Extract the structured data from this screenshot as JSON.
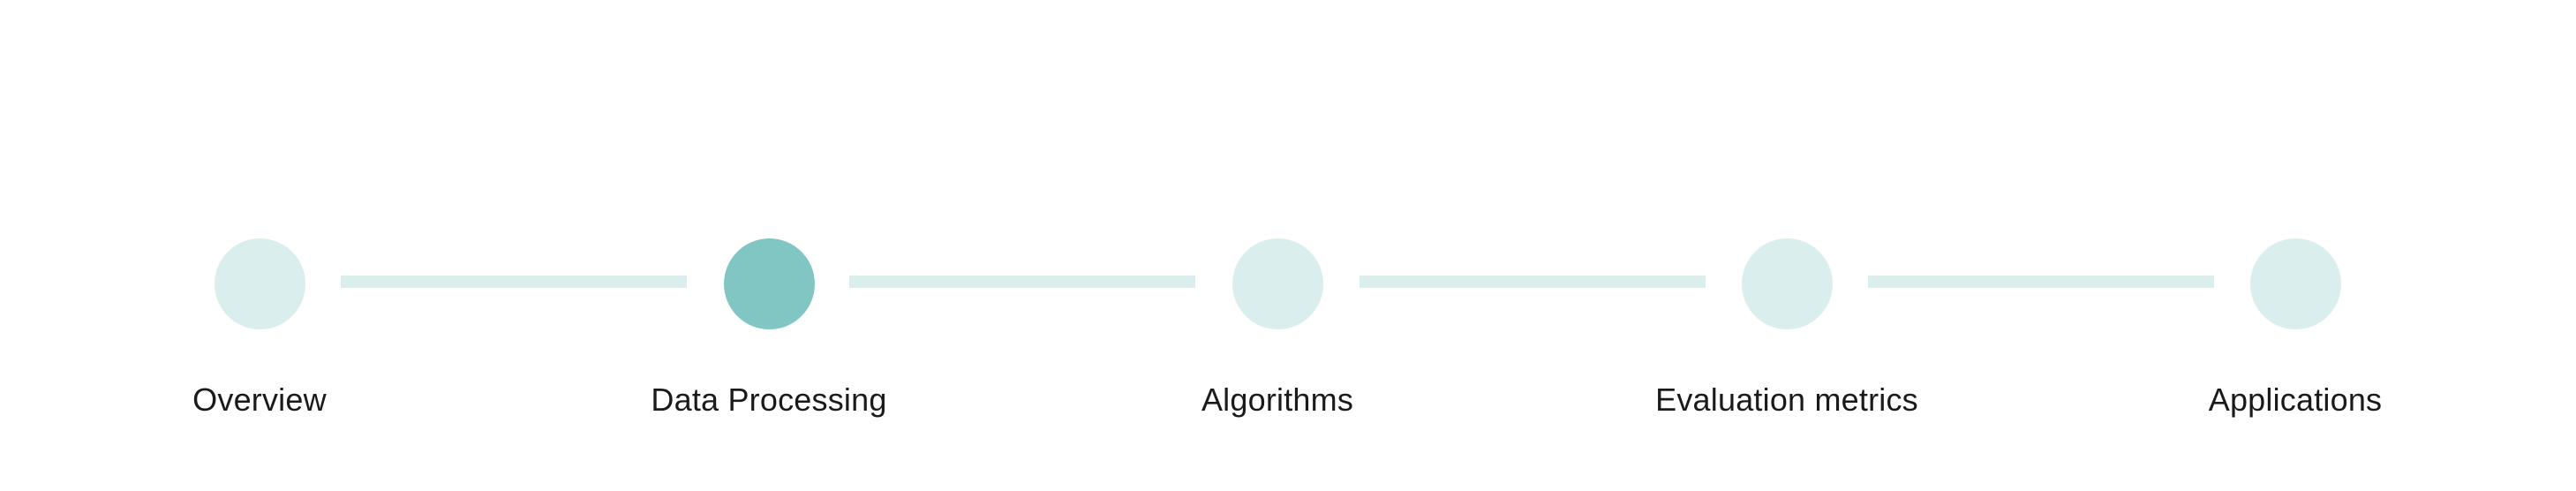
{
  "stepper": {
    "steps": [
      {
        "label": "Overview",
        "active": false
      },
      {
        "label": "Data Processing",
        "active": true
      },
      {
        "label": "Algorithms",
        "active": false
      },
      {
        "label": "Evaluation metrics",
        "active": false
      },
      {
        "label": "Applications",
        "active": false
      }
    ],
    "colors": {
      "inactive": "#daeeed",
      "active": "#82c6c4",
      "connector": "#daeeed",
      "label": "#1a1a1a"
    }
  }
}
